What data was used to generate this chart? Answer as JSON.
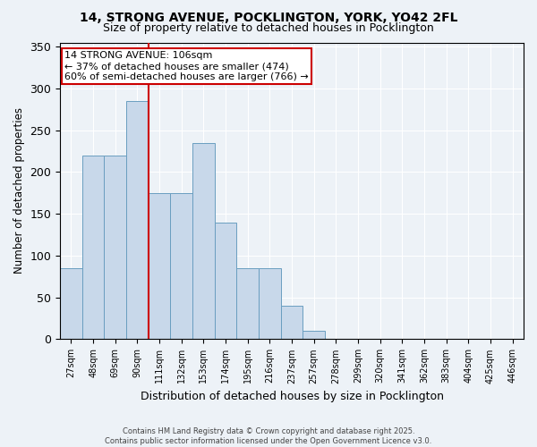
{
  "title_line1": "14, STRONG AVENUE, POCKLINGTON, YORK, YO42 2FL",
  "title_line2": "Size of property relative to detached houses in Pocklington",
  "xlabel": "Distribution of detached houses by size in Pocklington",
  "ylabel": "Number of detached properties",
  "bins": [
    "27sqm",
    "48sqm",
    "69sqm",
    "90sqm",
    "111sqm",
    "132sqm",
    "153sqm",
    "174sqm",
    "195sqm",
    "216sqm",
    "237sqm",
    "257sqm",
    "278sqm",
    "299sqm",
    "320sqm",
    "341sqm",
    "362sqm",
    "383sqm",
    "404sqm",
    "425sqm",
    "446sqm"
  ],
  "values": [
    85,
    220,
    220,
    285,
    175,
    175,
    235,
    140,
    85,
    85,
    40,
    10,
    0,
    0,
    0,
    0,
    0,
    0,
    0,
    0,
    0
  ],
  "bar_color": "#c8d8ea",
  "bar_edge_color": "#6a9ec0",
  "red_line_index": 4,
  "red_line_color": "#cc0000",
  "annotation_text": "14 STRONG AVENUE: 106sqm\n← 37% of detached houses are smaller (474)\n60% of semi-detached houses are larger (766) →",
  "annotation_box_color": "#ffffff",
  "annotation_box_edge": "#cc0000",
  "ylim": [
    0,
    355
  ],
  "yticks": [
    0,
    50,
    100,
    150,
    200,
    250,
    300,
    350
  ],
  "background_color": "#edf2f7",
  "grid_color": "#ffffff",
  "footer_line1": "Contains HM Land Registry data © Crown copyright and database right 2025.",
  "footer_line2": "Contains public sector information licensed under the Open Government Licence v3.0."
}
